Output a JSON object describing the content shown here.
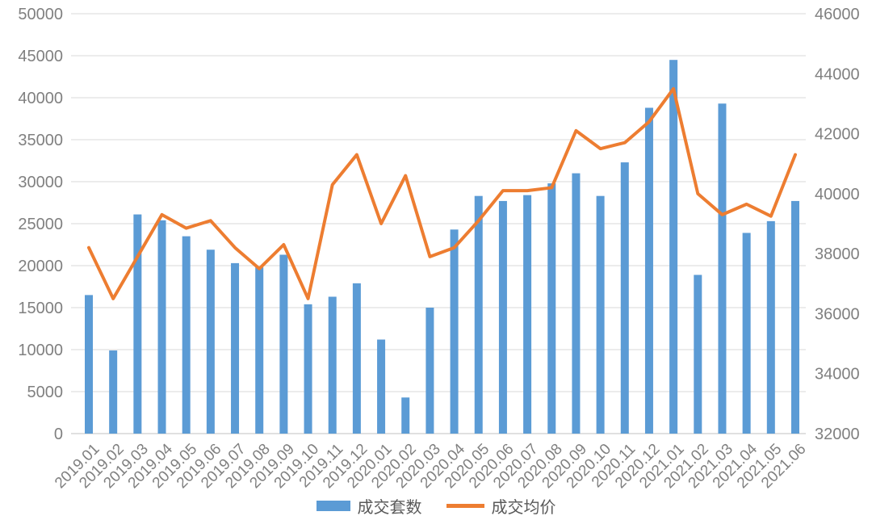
{
  "chart_data": {
    "type": "bar",
    "combo": "bar+line dual axis",
    "title": "",
    "categories": [
      "2019.01",
      "2019.02",
      "2019.03",
      "2019.04",
      "2019.05",
      "2019.06",
      "2019.07",
      "2019.08",
      "2019.09",
      "2019.10",
      "2019.11",
      "2019.12",
      "2020.01",
      "2020.02",
      "2020.03",
      "2020.04",
      "2020.05",
      "2020.06",
      "2020.07",
      "2020.08",
      "2020.09",
      "2020.10",
      "2020.11",
      "2020.12",
      "2021.01",
      "2021.02",
      "2021.03",
      "2021.04",
      "2021.05",
      "2021.06"
    ],
    "series": [
      {
        "name": "成交套数",
        "type": "bar",
        "axis": "left",
        "color": "#5B9BD5",
        "values": [
          16500,
          9900,
          26100,
          25400,
          23500,
          21900,
          20300,
          19800,
          21300,
          15400,
          16300,
          17900,
          11200,
          4300,
          15000,
          24300,
          28300,
          27700,
          28400,
          29800,
          31000,
          28300,
          32300,
          38800,
          44500,
          18900,
          39300,
          23900,
          25300,
          27700
        ]
      },
      {
        "name": "成交均价",
        "type": "line",
        "axis": "right",
        "color": "#ED7D31",
        "values": [
          38200,
          36500,
          37900,
          39300,
          38850,
          39100,
          38200,
          37500,
          38300,
          36500,
          40300,
          41300,
          39000,
          40600,
          37900,
          38200,
          39100,
          40100,
          40100,
          40200,
          42100,
          41500,
          41700,
          42400,
          43500,
          40000,
          39300,
          39650,
          39250,
          41300
        ]
      }
    ],
    "left_axis": {
      "min": 0,
      "max": 50000,
      "step": 5000,
      "tick_labels": [
        "50000",
        "45000",
        "40000",
        "35000",
        "30000",
        "25000",
        "20000",
        "15000",
        "10000",
        "5000",
        "0"
      ]
    },
    "right_axis": {
      "min": 32000,
      "max": 46000,
      "step": 2000,
      "tick_labels": [
        "46000",
        "44000",
        "42000",
        "40000",
        "38000",
        "36000",
        "34000",
        "32000"
      ]
    },
    "grid": true,
    "legend_position": "bottom",
    "colors": {
      "grid_line": "#D9D9D9",
      "axis_line": "#C0C0C0",
      "tick_text": "#808080",
      "legend_text": "#595959",
      "background": "#FFFFFF"
    }
  }
}
